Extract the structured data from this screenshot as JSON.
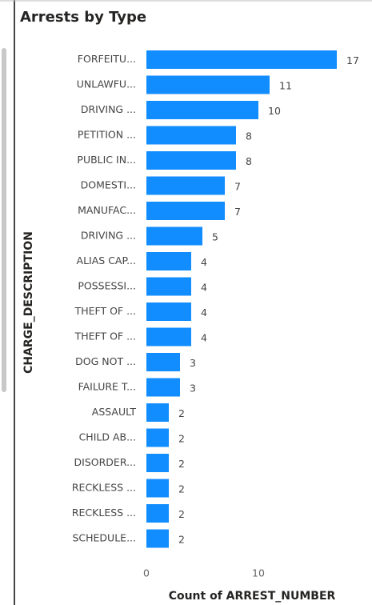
{
  "chart_data": {
    "type": "bar",
    "orientation": "horizontal",
    "title": "Arrests by Type",
    "y_axis_label": "CHARGE_DESCRIPTION",
    "x_axis_label": "Count of ARREST_NUMBER",
    "categories": [
      "FORFEITU...",
      "UNLAWFU...",
      "DRIVING ...",
      "PETITION ...",
      "PUBLIC IN...",
      "DOMESTI...",
      "MANUFAC...",
      "DRIVING ...",
      "ALIAS CAP...",
      "POSSESSI...",
      "THEFT OF ...",
      "THEFT OF ...",
      "DOG NOT ...",
      "FAILURE T...",
      "ASSAULT",
      "CHILD AB...",
      "DISORDER...",
      "RECKLESS ...",
      "RECKLESS ...",
      "SCHEDULE..."
    ],
    "values": [
      17,
      11,
      10,
      8,
      8,
      7,
      7,
      5,
      4,
      4,
      4,
      4,
      3,
      3,
      2,
      2,
      2,
      2,
      2,
      2
    ],
    "color": "#118dff",
    "xlim": [
      0,
      18
    ],
    "xticks": [
      0,
      10
    ],
    "grid": false
  }
}
